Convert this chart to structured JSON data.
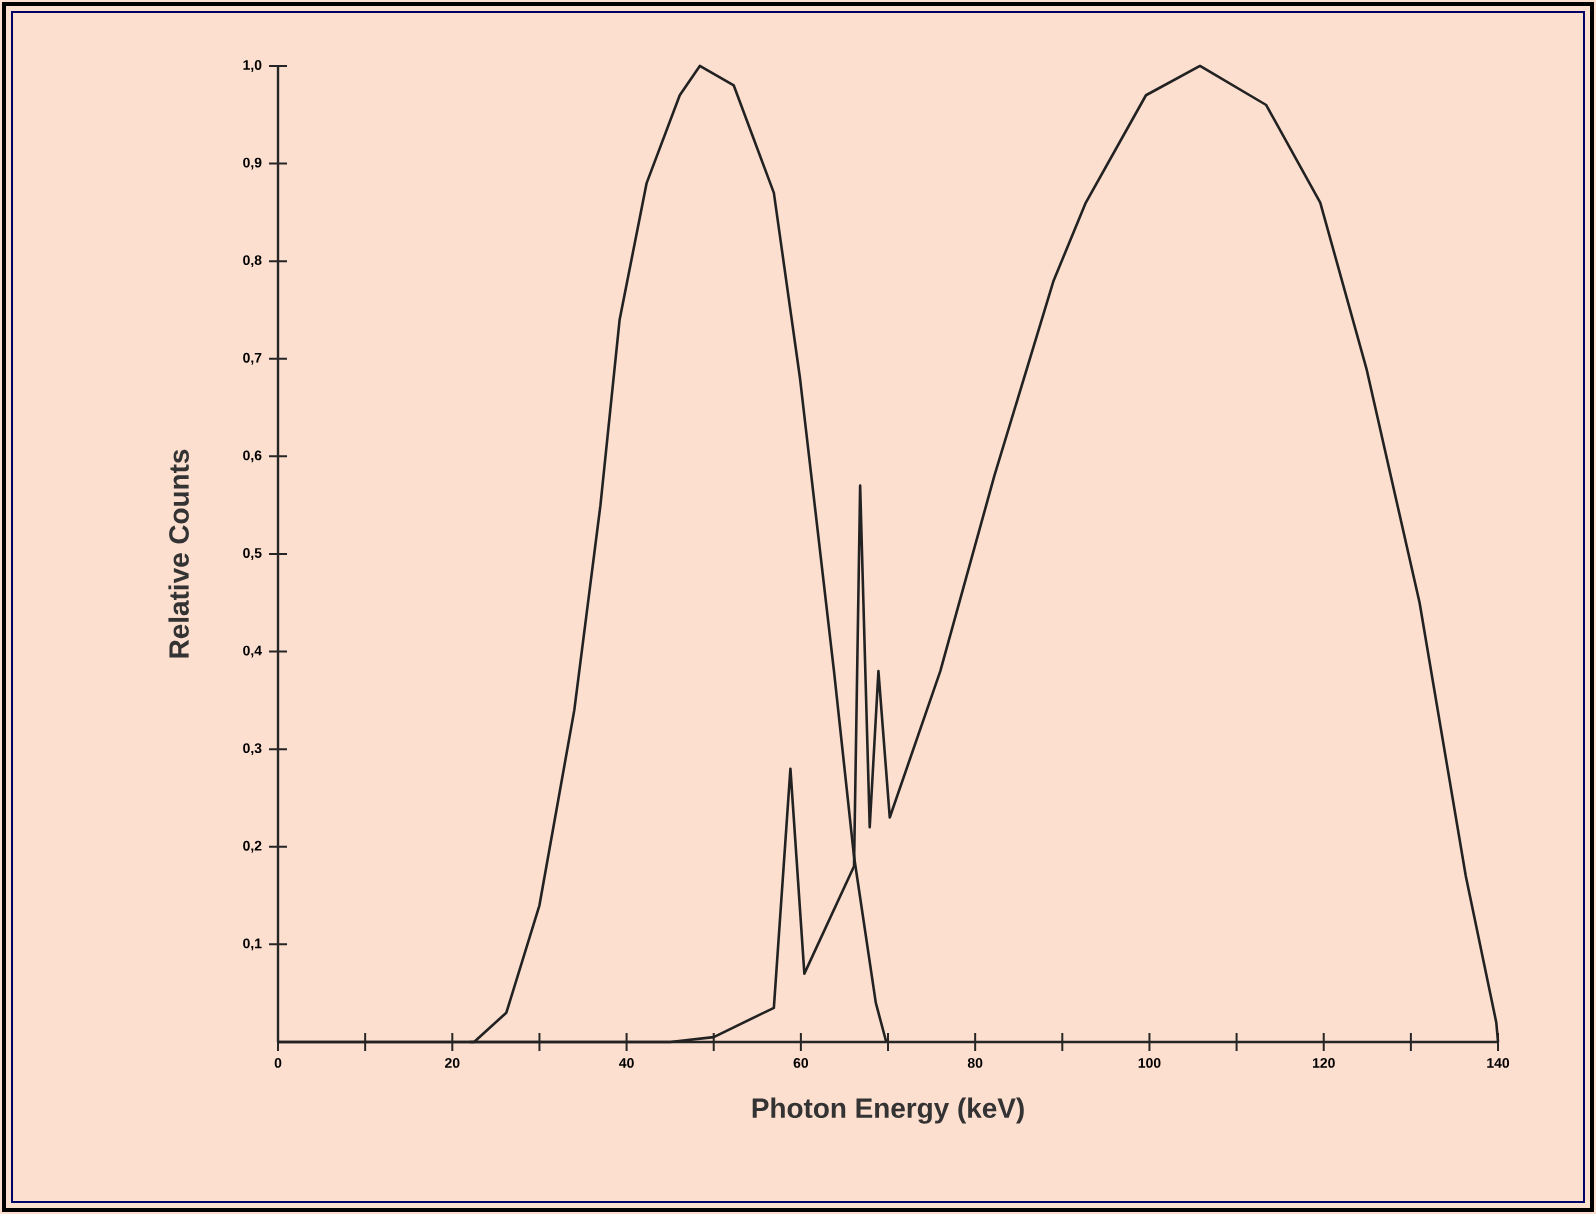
{
  "chart_data": {
    "type": "line",
    "xlabel": "Photon Energy (keV)",
    "ylabel": "Relative Counts",
    "xlim": [
      0,
      140
    ],
    "ylim": [
      0,
      1.0
    ],
    "xticks": [
      0,
      {
        "value": 10,
        "label": null
      },
      20,
      {
        "value": 30,
        "label": null
      },
      40,
      {
        "value": 50,
        "label": null
      },
      60,
      {
        "value": 70,
        "label": null
      },
      80,
      {
        "value": 90,
        "label": null
      },
      100,
      {
        "value": 110,
        "label": null
      },
      120,
      {
        "value": 130,
        "label": null
      },
      140
    ],
    "yticks": [
      {
        "value": 0.1,
        "label": "0,1"
      },
      {
        "value": 0.2,
        "label": "0,2"
      },
      {
        "value": 0.3,
        "label": "0,3"
      },
      {
        "value": 0.4,
        "label": "0,4"
      },
      {
        "value": 0.5,
        "label": "0,5"
      },
      {
        "value": 0.6,
        "label": "0,6"
      },
      {
        "value": 0.7,
        "label": "0,7"
      },
      {
        "value": 0.8,
        "label": "0,8"
      },
      {
        "value": 0.9,
        "label": "0,9"
      },
      {
        "value": 1.0,
        "label": "1,0"
      }
    ],
    "grid": false,
    "marker": "none",
    "line_style": "solid",
    "series": [
      {
        "color": "#222222",
        "x": [
          0,
          22.5,
          26.2,
          30,
          34,
          37,
          39.2,
          42.3,
          46.1,
          48.4,
          52.3,
          56.9,
          59.9,
          63.8,
          66.1,
          68.6,
          69.8
        ],
        "values": [
          0,
          0,
          0.03,
          0.14,
          0.34,
          0.55,
          0.74,
          0.88,
          0.97,
          1.0,
          0.98,
          0.87,
          0.68,
          0.38,
          0.19,
          0.04,
          0
        ]
      },
      {
        "color": "#222222",
        "x": [
          22,
          45,
          50,
          56.9,
          58.8,
          60.4,
          66.1,
          66.8,
          67.9,
          68.9,
          70.2,
          76.0,
          82.2,
          89,
          92.7,
          99.6,
          105.8,
          113.4,
          119.6,
          124.9,
          131,
          136.3,
          139.8,
          140
        ],
        "values": [
          0,
          0,
          0.005,
          0.035,
          0.28,
          0.07,
          0.18,
          0.57,
          0.22,
          0.38,
          0.23,
          0.38,
          0.58,
          0.78,
          0.86,
          0.97,
          1.0,
          0.96,
          0.86,
          0.69,
          0.45,
          0.17,
          0.02,
          0
        ]
      }
    ]
  }
}
